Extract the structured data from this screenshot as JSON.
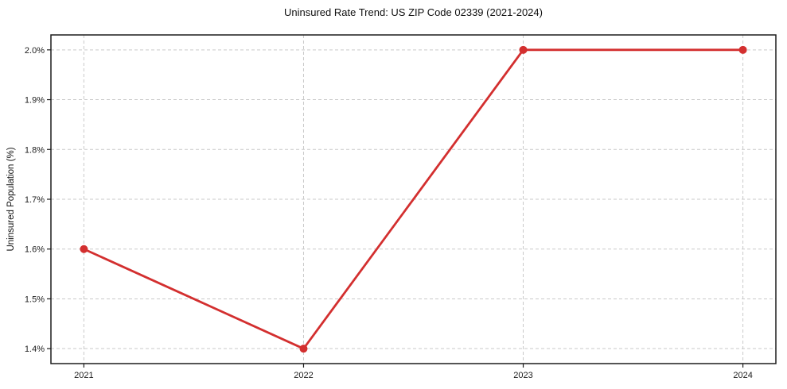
{
  "title": "Uninsured Rate Trend: US ZIP Code 02339 (2021-2024)",
  "chart_data": {
    "type": "line",
    "title": "Uninsured Rate Trend: US ZIP Code 02339 (2021-2024)",
    "xlabel": "",
    "ylabel": "Uninsured Population (%)",
    "x": [
      2021,
      2022,
      2023,
      2024
    ],
    "xtick_labels": [
      "2021",
      "2022",
      "2023",
      "2024"
    ],
    "values": [
      1.6,
      1.4,
      2.0,
      2.0
    ],
    "ytick_values": [
      1.4,
      1.5,
      1.6,
      1.7,
      1.8,
      1.9,
      2.0
    ],
    "ytick_labels": [
      "1.4%",
      "1.5%",
      "1.6%",
      "1.7%",
      "1.8%",
      "1.9%",
      "2.0%"
    ],
    "xlim": [
      2020.85,
      2024.15
    ],
    "ylim": [
      1.37,
      2.03
    ],
    "grid": true,
    "grid_style": "dashed",
    "legend": false,
    "line_color": "#d32f2f",
    "marker": "circle",
    "grid_color": "#c9c9c9",
    "axis_color": "#1c1c1c"
  }
}
